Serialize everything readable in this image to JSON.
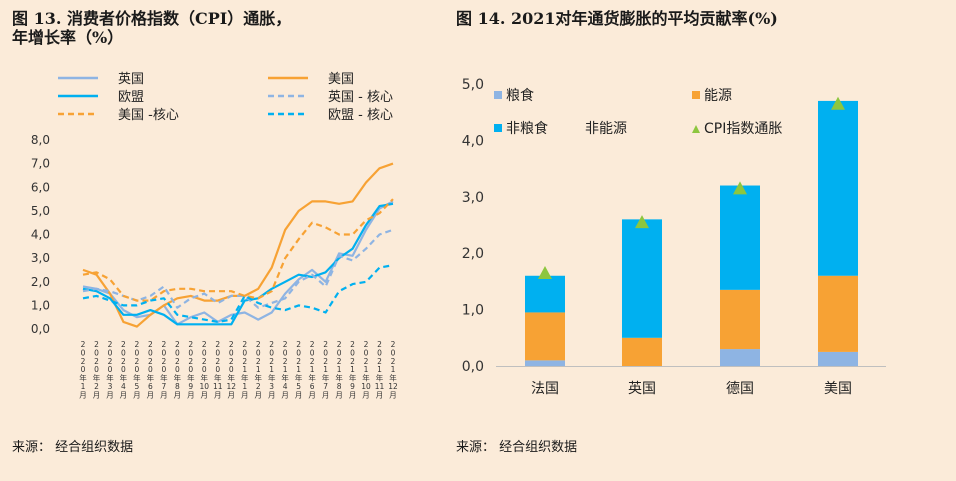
{
  "charts": {
    "left": {
      "title_line1": "图 13. 消费者价格指数（CPI）通胀，",
      "title_line2": "年增长率（%）",
      "source": "来源： 经合组织数据"
    },
    "right": {
      "title": "图 14. 2021对年通货膨胀的平均贡献率(%)",
      "source": "来源： 经合组织数据"
    }
  },
  "chart_data": [
    {
      "type": "line",
      "title": "图 13. 消费者价格指数（CPI）通胀，年增长率（%）",
      "ylim": [
        0,
        8
      ],
      "yticks": [
        "0,0",
        "1,0",
        "2,0",
        "3,0",
        "4,0",
        "5,0",
        "6,0",
        "7,0",
        "8,0"
      ],
      "x": [
        "2020年1月",
        "2020年2月",
        "2020年3月",
        "2020年4月",
        "2020年5月",
        "2020年6月",
        "2020年7月",
        "2020年8月",
        "2020年9月",
        "2020年10月",
        "2020年11月",
        "2020年12月",
        "2021年1月",
        "2021年2月",
        "2021年3月",
        "2021年4月",
        "2021年5月",
        "2021年6月",
        "2021年7月",
        "2021年8月",
        "2021年9月",
        "2021年10月",
        "2021年11月",
        "2021年12月"
      ],
      "xtick_labels": [
        "2020年1月",
        "2020年2月",
        "2020年3月",
        "2020年4月",
        "2020年5月",
        "2020年6月",
        "2020年7月",
        "2020年8月",
        "2020年9月",
        "2020年10月",
        "2020年11月",
        "2020年12月",
        "2021年1月",
        "2021年2月",
        "2021年3月",
        "2021年4月",
        "2021年5月",
        "2021年6月",
        "2021年7月",
        "2021年8月",
        "2021年9月",
        "2021年10月",
        "2021年11月",
        "2021年12月"
      ],
      "legend_position": "top",
      "grid": false,
      "series": [
        {
          "name": "英国",
          "color": "#8EB4E3",
          "dash": false,
          "values": [
            1.8,
            1.7,
            1.5,
            0.8,
            0.5,
            0.6,
            1.0,
            0.2,
            0.5,
            0.7,
            0.3,
            0.6,
            0.7,
            0.4,
            0.7,
            1.5,
            2.1,
            2.5,
            2.0,
            3.2,
            3.1,
            4.2,
            5.1,
            5.4
          ]
        },
        {
          "name": "美国",
          "color": "#F7A234",
          "dash": false,
          "values": [
            2.5,
            2.3,
            1.5,
            0.3,
            0.1,
            0.6,
            1.0,
            1.3,
            1.4,
            1.2,
            1.2,
            1.4,
            1.4,
            1.7,
            2.6,
            4.2,
            5.0,
            5.4,
            5.4,
            5.3,
            5.4,
            6.2,
            6.8,
            7.0
          ]
        },
        {
          "name": "欧盟",
          "color": "#00B0F0",
          "dash": false,
          "values": [
            1.7,
            1.6,
            1.3,
            0.6,
            0.6,
            0.8,
            0.6,
            0.2,
            0.2,
            0.2,
            0.2,
            0.2,
            1.2,
            1.3,
            1.7,
            2.0,
            2.3,
            2.2,
            2.4,
            3.0,
            3.4,
            4.4,
            5.2,
            5.3
          ]
        },
        {
          "name": "英国 - 核心",
          "color": "#8EB4E3",
          "dash": true,
          "values": [
            1.6,
            1.7,
            1.6,
            1.4,
            1.2,
            1.4,
            1.8,
            0.9,
            1.3,
            1.5,
            1.1,
            1.4,
            1.4,
            0.9,
            1.1,
            1.3,
            2.0,
            2.3,
            1.8,
            3.1,
            2.9,
            3.4,
            4.0,
            4.2
          ]
        },
        {
          "name": "美国 -核心",
          "color": "#F7A234",
          "dash": true,
          "values": [
            2.3,
            2.4,
            2.1,
            1.4,
            1.2,
            1.2,
            1.6,
            1.7,
            1.7,
            1.6,
            1.6,
            1.6,
            1.4,
            1.3,
            1.6,
            3.0,
            3.8,
            4.5,
            4.3,
            4.0,
            4.0,
            4.6,
            4.9,
            5.5
          ]
        },
        {
          "name": "欧盟 - 核心",
          "color": "#00B0F0",
          "dash": true,
          "values": [
            1.3,
            1.4,
            1.2,
            1.0,
            1.0,
            1.2,
            1.3,
            0.6,
            0.5,
            0.4,
            0.3,
            0.4,
            1.4,
            1.1,
            0.9,
            0.8,
            1.0,
            0.9,
            0.7,
            1.6,
            1.9,
            2.0,
            2.6,
            2.7
          ]
        }
      ]
    },
    {
      "type": "bar",
      "stacked": true,
      "title": "图 14. 2021对年通货膨胀的平均贡献率(%)",
      "categories": [
        "法国",
        "英国",
        "德国",
        "美国"
      ],
      "ylim": [
        0,
        5
      ],
      "yticks": [
        "0,0",
        "1,0",
        "2,0",
        "3,0",
        "4,0",
        "5,0"
      ],
      "legend_position": "top-left",
      "grid": false,
      "series": [
        {
          "name": "粮食",
          "color": "#8EB4E3",
          "values": [
            0.1,
            0.0,
            0.3,
            0.25
          ]
        },
        {
          "name": "能源",
          "color": "#F7A234",
          "values": [
            0.85,
            0.5,
            1.05,
            1.35
          ]
        },
        {
          "name": "非粮食 非能源",
          "legend_label_1": "非粮食",
          "legend_label_2": "非能源",
          "color": "#00B0F0",
          "values": [
            0.65,
            2.1,
            1.85,
            3.1
          ]
        }
      ],
      "markers": {
        "name": "CPI指数通胀",
        "color": "#8DC63F",
        "values": [
          1.65,
          2.55,
          3.15,
          4.65
        ]
      }
    }
  ]
}
